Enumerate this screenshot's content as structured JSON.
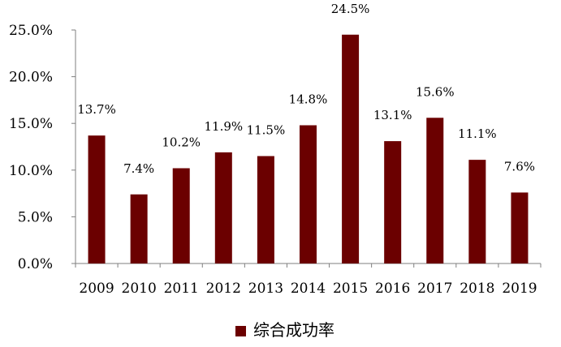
{
  "chart_data": {
    "type": "bar",
    "title": "",
    "xlabel": "",
    "ylabel": "",
    "categories": [
      "2009",
      "2010",
      "2011",
      "2012",
      "2013",
      "2014",
      "2015",
      "2016",
      "2017",
      "2018",
      "2019"
    ],
    "series": [
      {
        "name": "综合成功率",
        "values": [
          13.7,
          7.4,
          10.2,
          11.9,
          11.5,
          14.8,
          24.5,
          13.1,
          15.6,
          11.1,
          7.6
        ],
        "data_labels": [
          "13.7%",
          "7.4%",
          "10.2%",
          "11.9%",
          "11.5%",
          "14.8%",
          "24.5%",
          "13.1%",
          "15.6%",
          "11.1%",
          "7.6%"
        ],
        "color": "#6b0000"
      }
    ],
    "ylim": [
      0,
      25
    ],
    "yticks": [
      0,
      5,
      10,
      15,
      20,
      25
    ],
    "ytick_labels": [
      "0.0%",
      "5.0%",
      "10.0%",
      "15.0%",
      "20.0%",
      "25.0%"
    ],
    "grid": false,
    "legend": {
      "position": "bottom-center",
      "entries": [
        "综合成功率"
      ]
    }
  }
}
